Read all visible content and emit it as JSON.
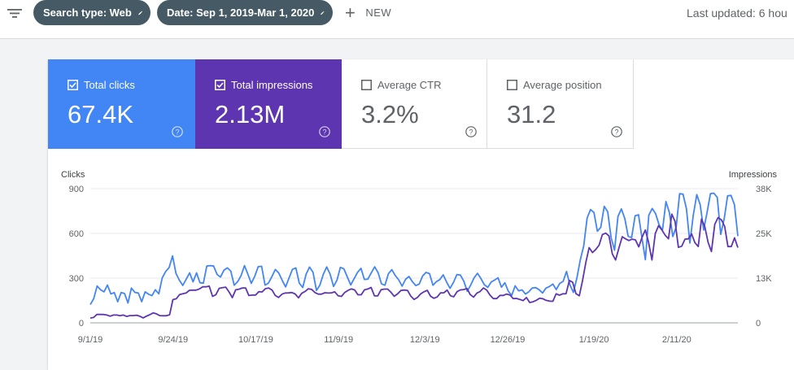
{
  "toolbar": {
    "filter_icon": "filter-list-icon",
    "chips": [
      {
        "label": "Search type: Web",
        "icon": "pencil-icon"
      },
      {
        "label": "Date: Sep 1, 2019-Mar 1, 2020",
        "icon": "pencil-icon"
      }
    ],
    "new_label": "NEW",
    "last_updated": "Last updated: 6 hou"
  },
  "metrics": [
    {
      "label": "Total clicks",
      "value": "67.4K",
      "checked": true,
      "color": "#4285f4"
    },
    {
      "label": "Total impressions",
      "value": "2.13M",
      "checked": true,
      "color": "#5e35b1"
    },
    {
      "label": "Average CTR",
      "value": "3.2%",
      "checked": false
    },
    {
      "label": "Average position",
      "value": "31.2",
      "checked": false
    }
  ],
  "chart_data": {
    "type": "line",
    "ylabel_left": "Clicks",
    "ylabel_right": "Impressions",
    "y_left_ticks": [
      "0",
      "300",
      "600",
      "900"
    ],
    "y_right_ticks": [
      "0",
      "13K",
      "25K",
      "38K"
    ],
    "y_left_range": [
      0,
      900
    ],
    "y_right_range": [
      0,
      38000
    ],
    "x_ticks": [
      "9/1/19",
      "9/24/19",
      "10/17/19",
      "11/9/19",
      "12/3/19",
      "12/26/19",
      "1/19/20",
      "2/11/20"
    ],
    "x_range": [
      "2019-09-01",
      "2020-02-28"
    ],
    "grid": true,
    "series": [
      {
        "name": "Total clicks",
        "color": "#4285f4",
        "axis": "left",
        "values": [
          122,
          162,
          247,
          222,
          208,
          253,
          194,
          203,
          141,
          203,
          197,
          133,
          233,
          204,
          200,
          142,
          208,
          192,
          182,
          222,
          195,
          301,
          345,
          371,
          449,
          332,
          286,
          251,
          293,
          335,
          275,
          335,
          269,
          266,
          381,
          384,
          381,
          325,
          307,
          353,
          369,
          347,
          252,
          276,
          316,
          384,
          326,
          265,
          313,
          377,
          379,
          253,
          267,
          310,
          358,
          335,
          285,
          241,
          301,
          359,
          368,
          266,
          237,
          327,
          374,
          339,
          217,
          253,
          325,
          375,
          327,
          244,
          286,
          372,
          362,
          308,
          254,
          296,
          339,
          366,
          291,
          293,
          336,
          376,
          336,
          261,
          252,
          329,
          357,
          318,
          289,
          246,
          292,
          311,
          276,
          250,
          260,
          314,
          338,
          330,
          252,
          276,
          290,
          322,
          273,
          231,
          271,
          324,
          320,
          280,
          212,
          252,
          301,
          332,
          298,
          256,
          238,
          274,
          287,
          302,
          239,
          269,
          212,
          184,
          248,
          215,
          221,
          193,
          209,
          234,
          236,
          222,
          200,
          233,
          244,
          260,
          223,
          264,
          278,
          345,
          255,
          204,
          300,
          422,
          515,
          703,
          760,
          740,
          614,
          641,
          781,
          745,
          571,
          487,
          713,
          764,
          700,
          580,
          572,
          718,
          725,
          570,
          424,
          721,
          767,
          732,
          659,
          620,
          813,
          740,
          579,
          643,
          866,
          863,
          765,
          535,
          722,
          860,
          792,
          623,
          739,
          866,
          870,
          841,
          593,
          698,
          852,
          855,
          792,
          582
        ]
      },
      {
        "name": "Total impressions",
        "color": "#5e35b1",
        "axis": "right",
        "values": [
          1370,
          1520,
          2380,
          2380,
          2380,
          2220,
          1900,
          2200,
          2220,
          2030,
          2210,
          1810,
          2060,
          2060,
          2160,
          1870,
          1400,
          1880,
          2300,
          2820,
          2560,
          2060,
          2000,
          2000,
          2290,
          6560,
          6820,
          8000,
          8240,
          8450,
          9210,
          9250,
          9250,
          9580,
          10210,
          10210,
          10390,
          7490,
          7980,
          9760,
          9960,
          10100,
          8740,
          7150,
          9340,
          9540,
          9880,
          9880,
          7740,
          7860,
          7860,
          8820,
          8760,
          9670,
          9870,
          9290,
          7740,
          7180,
          8140,
          8460,
          8480,
          8590,
          8170,
          7100,
          8350,
          8890,
          9640,
          9470,
          8570,
          8140,
          8140,
          8510,
          8440,
          8500,
          8780,
          7680,
          7490,
          8580,
          9180,
          9610,
          9320,
          7940,
          7940,
          9340,
          9570,
          10020,
          7640,
          7630,
          9370,
          9560,
          9560,
          8650,
          7510,
          8210,
          9160,
          9280,
          9180,
          7580,
          6620,
          7210,
          8190,
          8800,
          9210,
          7530,
          6960,
          7330,
          8480,
          8510,
          9270,
          7660,
          7380,
          8830,
          9330,
          9420,
          9730,
          8020,
          7270,
          8430,
          8880,
          9880,
          9280,
          7830,
          6860,
          6860,
          7770,
          7770,
          8150,
          7900,
          6860,
          6910,
          6630,
          6290,
          7160,
          5750,
          5970,
          6380,
          6980,
          6820,
          6360,
          6150,
          6110,
          8220,
          7830,
          8230,
          8240,
          12000,
          11500,
          8270,
          7660,
          12000,
          17200,
          21300,
          19900,
          20800,
          22000,
          25000,
          25400,
          24600,
          19500,
          17800,
          21200,
          24400,
          23800,
          23300,
          23700,
          23500,
          21500,
          24200,
          26300,
          22700,
          17800,
          25300,
          27500,
          26300,
          24800,
          23800,
          30800,
          28700,
          21400,
          21700,
          23700,
          23800,
          25200,
          22700,
          21600,
          29400,
          27200,
          22800,
          20200,
          27900,
          29800,
          29200,
          27300,
          21600,
          21600,
          24100,
          21300
        ]
      }
    ]
  }
}
